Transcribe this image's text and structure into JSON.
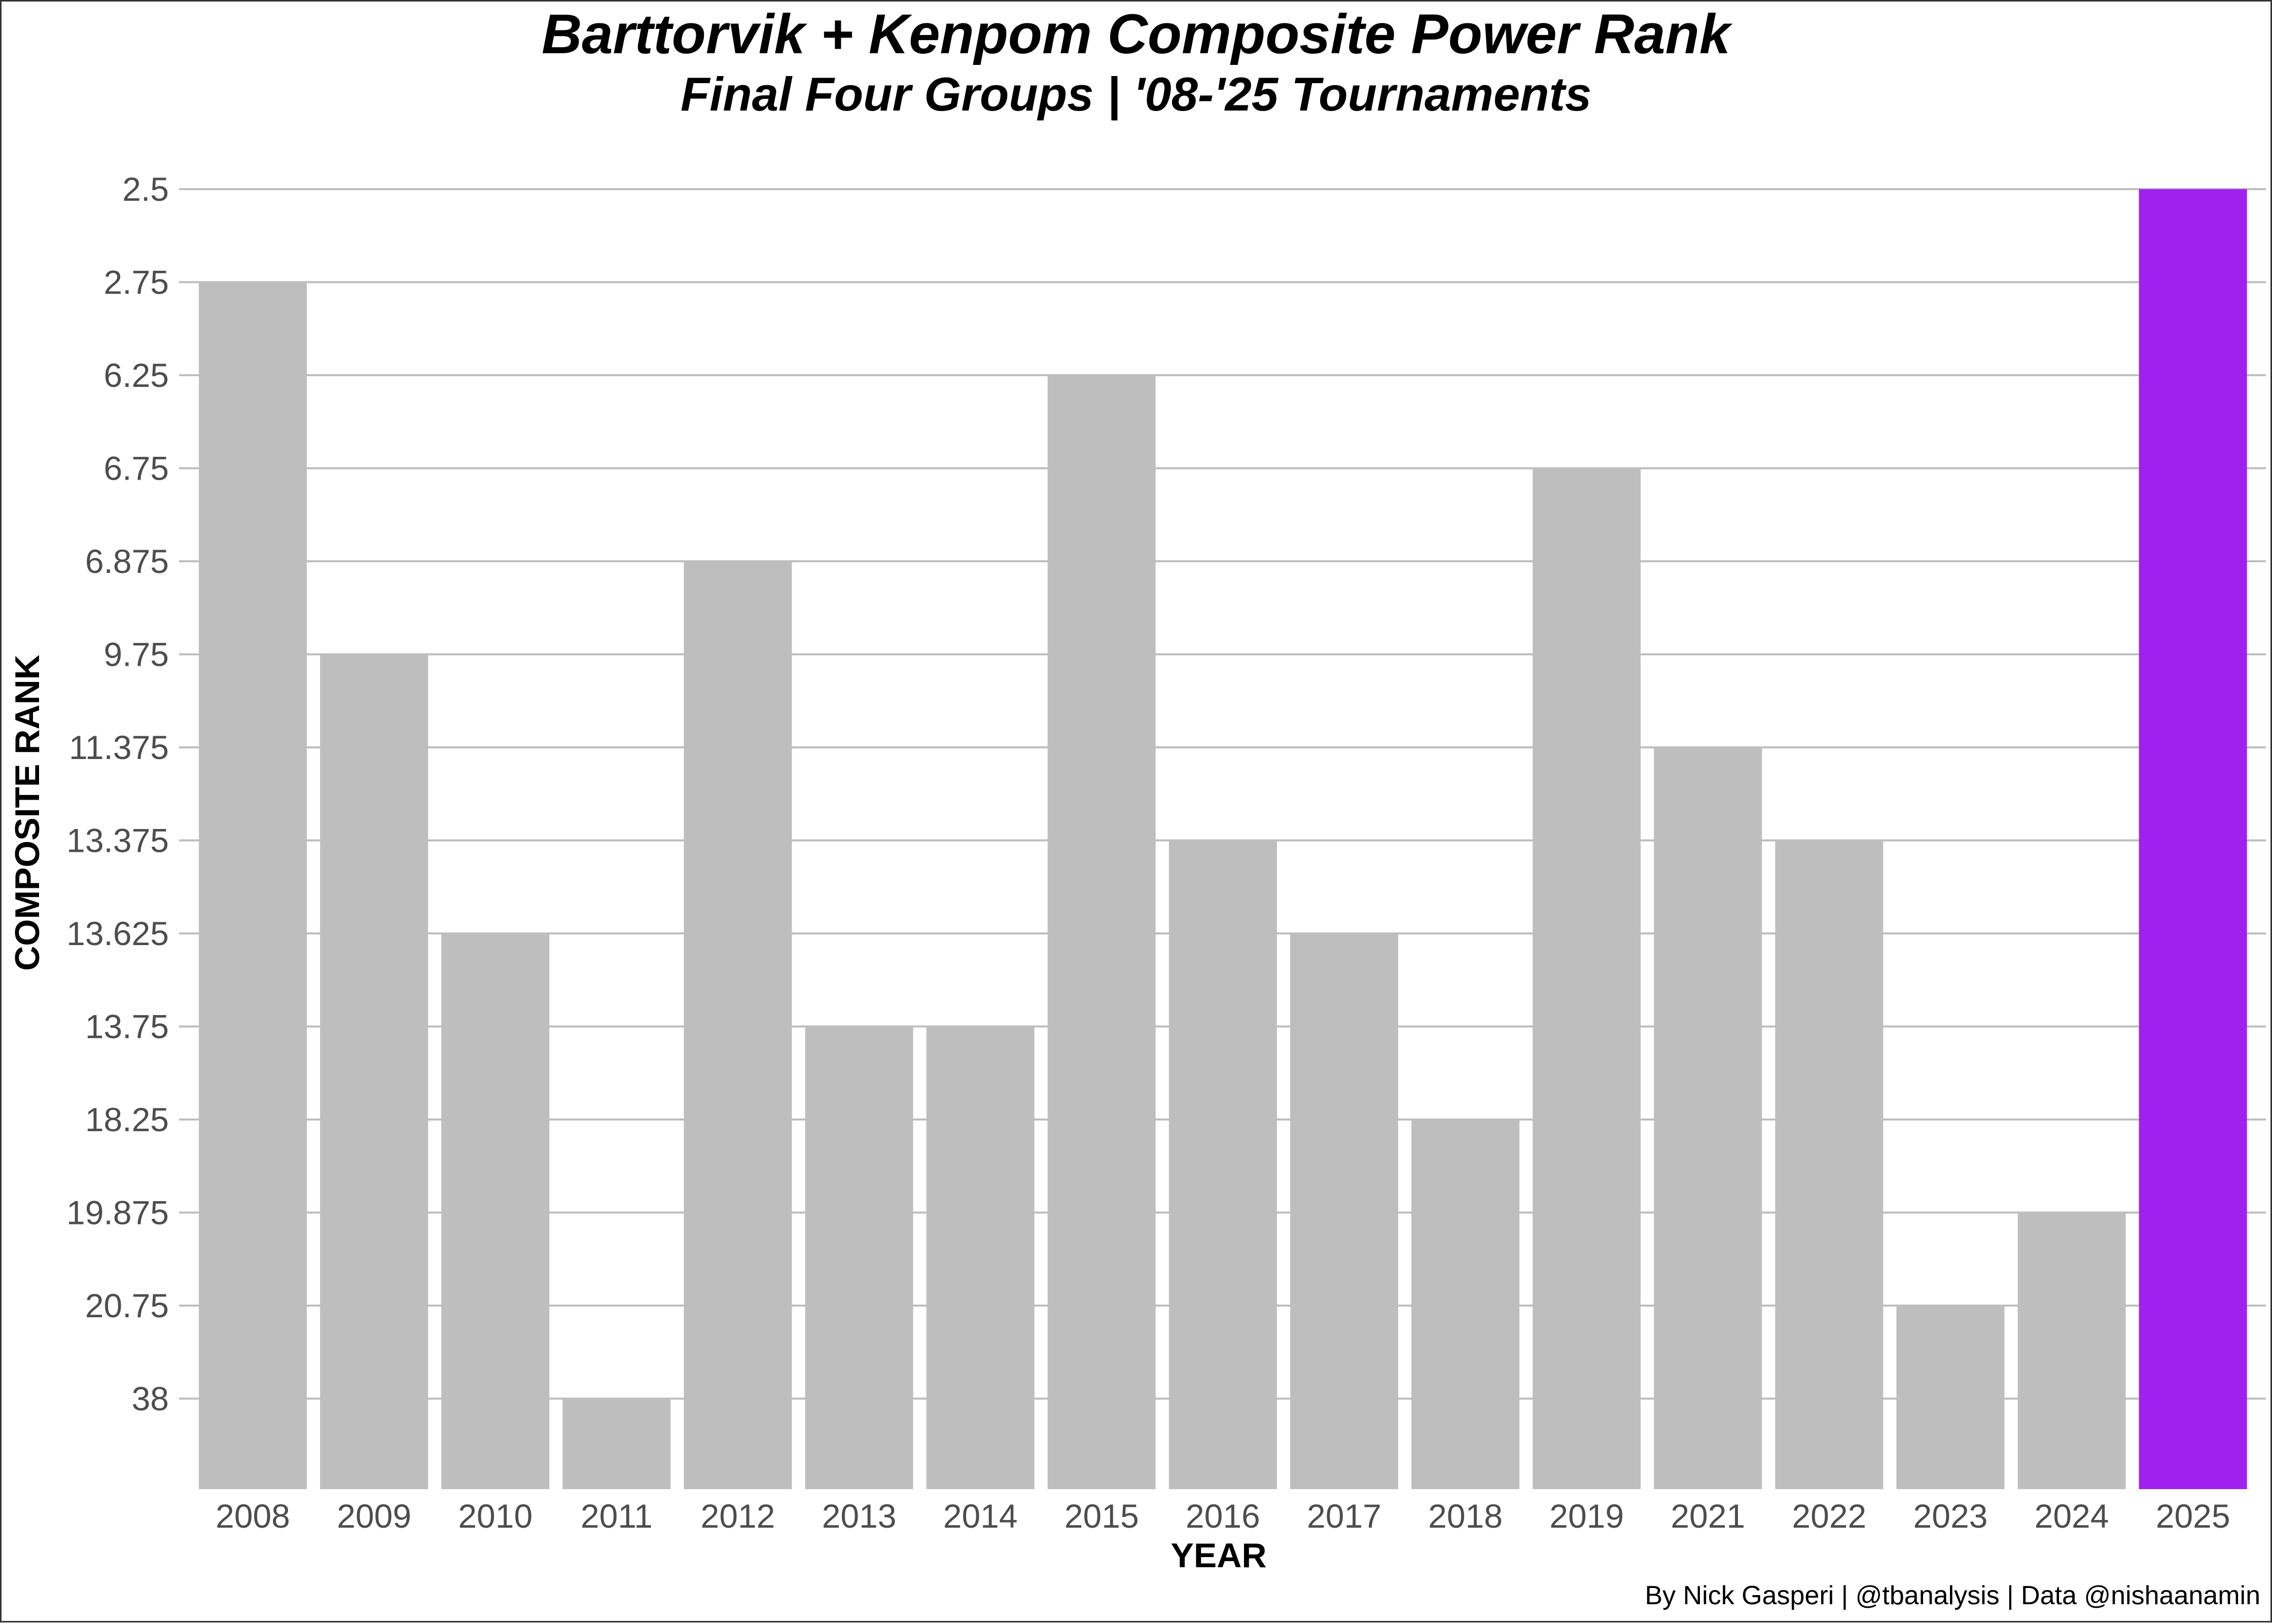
{
  "chart_data": {
    "type": "bar",
    "title": "Barttorvik + Kenpom Composite Power Rank",
    "subtitle": "Final Four Groups | '08-'25 Tournaments",
    "xlabel": "YEAR",
    "ylabel": "COMPOSITE RANK",
    "caption": "By Nick Gasperi | @tbanalysis | Data @nishaanamin",
    "y_axis": {
      "scale": "categorical-rank",
      "reversed": true,
      "ticks": [
        "2.5",
        "2.75",
        "6.25",
        "6.75",
        "6.875",
        "9.75",
        "11.375",
        "13.375",
        "13.625",
        "13.75",
        "18.25",
        "19.875",
        "20.75",
        "38"
      ]
    },
    "categories": [
      "2008",
      "2009",
      "2010",
      "2011",
      "2012",
      "2013",
      "2014",
      "2015",
      "2016",
      "2017",
      "2018",
      "2019",
      "2021",
      "2022",
      "2023",
      "2024",
      "2025"
    ],
    "values": [
      2.75,
      9.75,
      13.625,
      38,
      6.875,
      13.75,
      13.75,
      6.25,
      13.375,
      13.625,
      18.25,
      6.75,
      11.375,
      13.375,
      20.75,
      19.875,
      2.5
    ],
    "highlight_category": "2025",
    "colors": {
      "bar": "#bebebe",
      "highlight": "#a020f0",
      "grid": "#bebebe"
    },
    "grid": true,
    "legend": "none"
  }
}
